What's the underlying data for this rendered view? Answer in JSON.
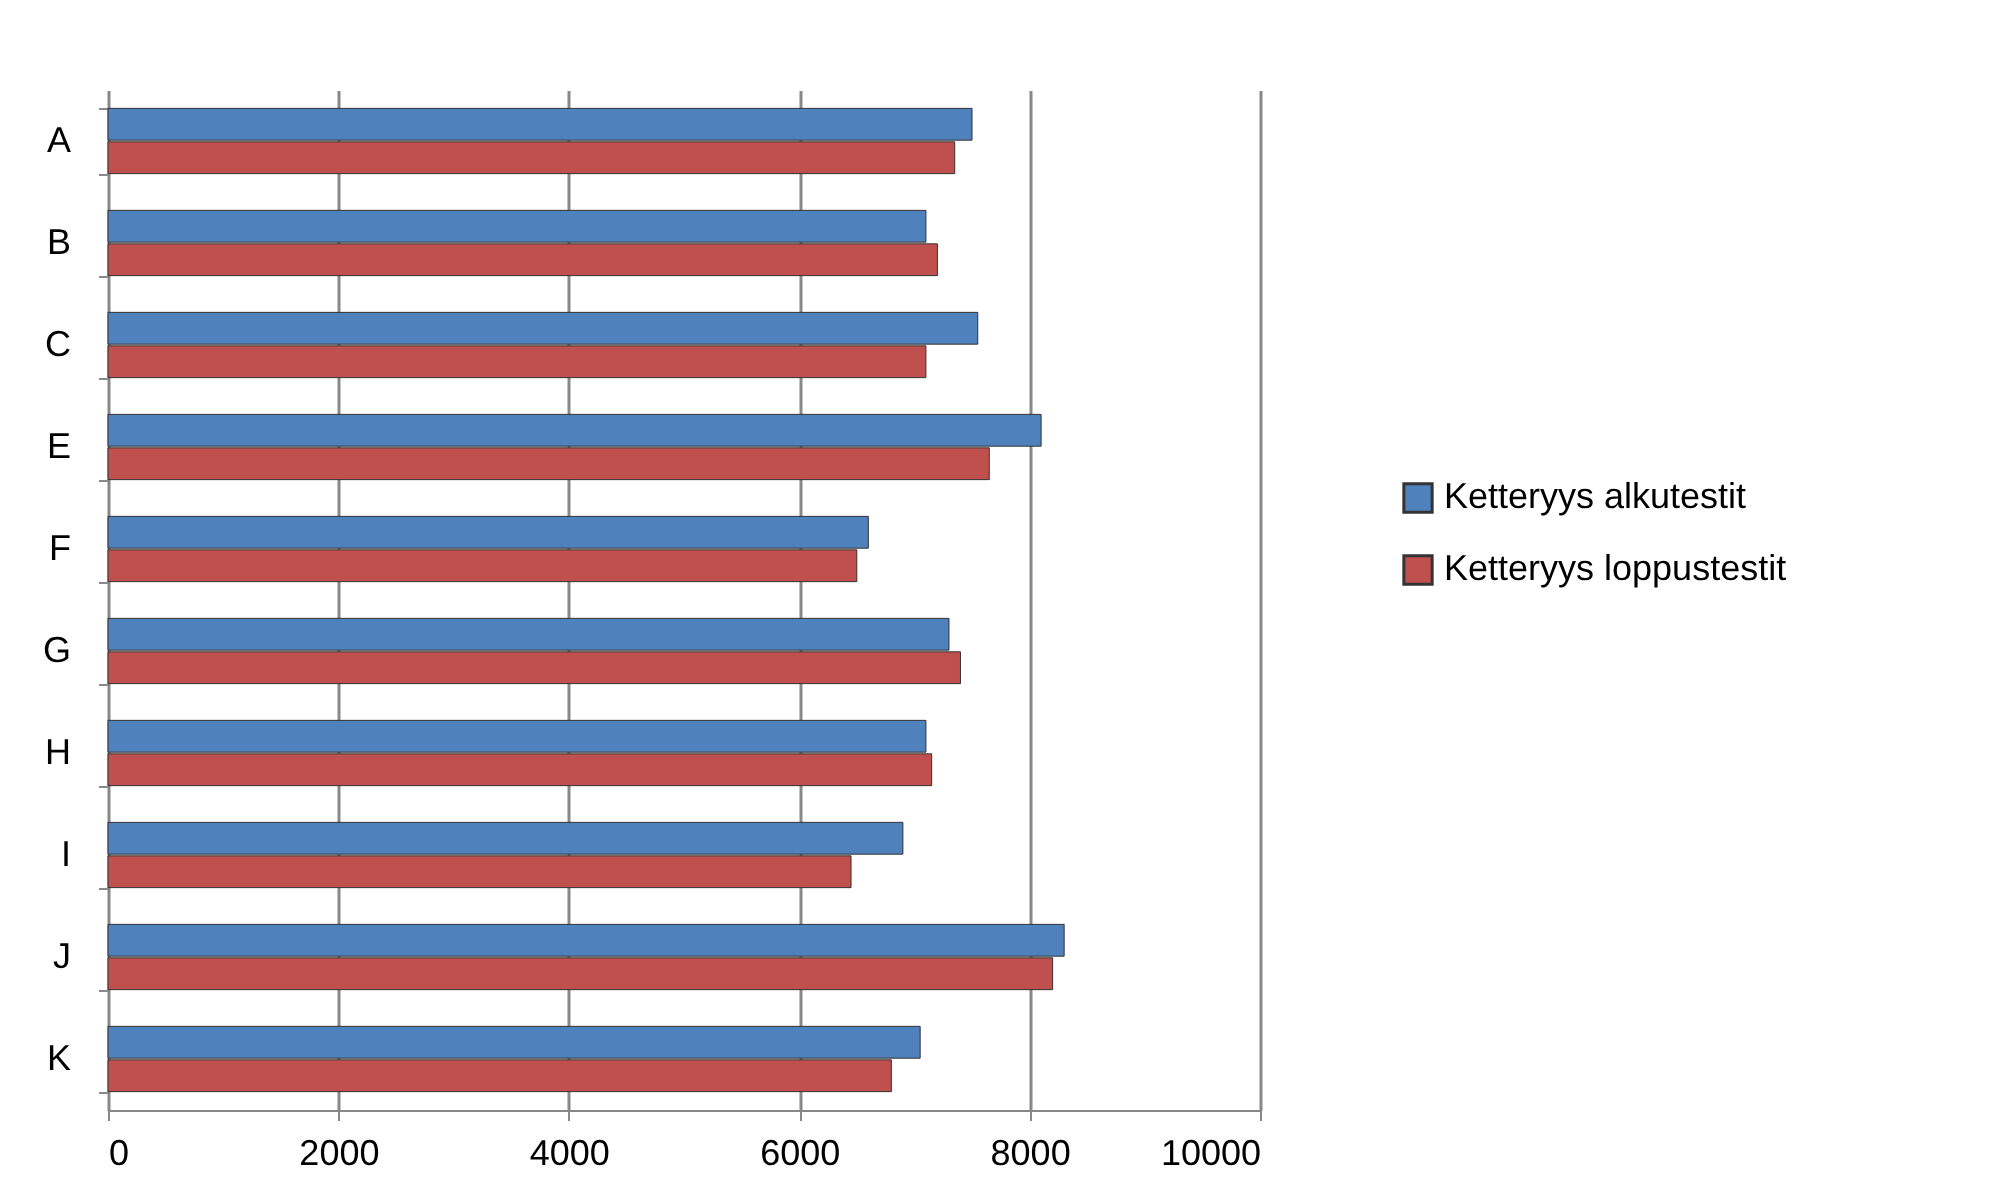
{
  "chart_data": {
    "type": "bar",
    "orientation": "horizontal",
    "categories": [
      "A",
      "B",
      "C",
      "E",
      "F",
      "G",
      "H",
      "I",
      "J",
      "K"
    ],
    "series": [
      {
        "name": "Ketteryys alkutestit",
        "color": "#4f81bd",
        "values": [
          7500,
          7100,
          7550,
          8100,
          6600,
          7300,
          7100,
          6900,
          8300,
          7050
        ]
      },
      {
        "name": "Ketteryys loppustestit",
        "color": "#c0504d",
        "values": [
          7350,
          7200,
          7100,
          7650,
          6500,
          7400,
          7150,
          6450,
          8200,
          6800
        ]
      }
    ],
    "xlim": [
      0,
      10000
    ],
    "xticks": [
      0,
      2000,
      4000,
      6000,
      8000,
      10000
    ],
    "grid": "x",
    "legend": "right"
  }
}
